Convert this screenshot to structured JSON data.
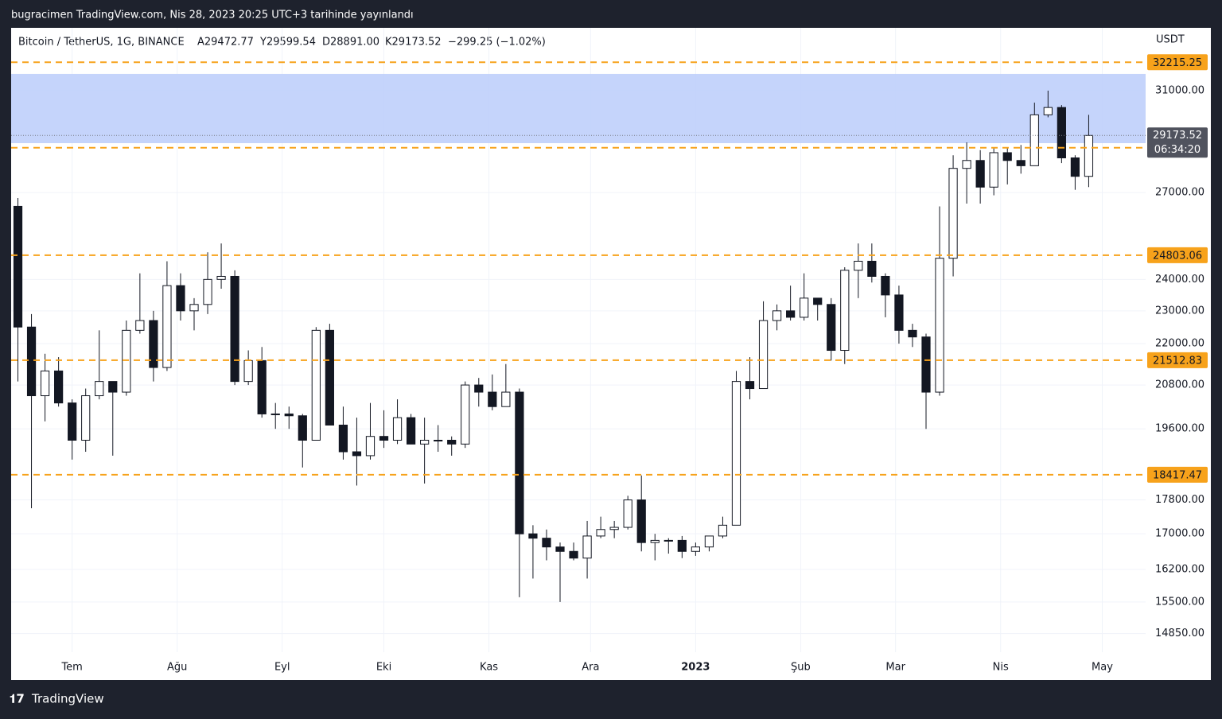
{
  "header": {
    "published": "bugracimen TradingView.com, Nis 28, 2023 20:25 UTC+3 tarihinde yayınlandı",
    "symbol": "Bitcoin / TetherUS, 1G, BINANCE",
    "open": "A29472.77",
    "high": "Y29599.54",
    "low": "D28891.00",
    "close": "K29173.52",
    "change": "−299.25 (−1.02%)",
    "brand": "TradingView"
  },
  "chart_data": {
    "type": "candlestick",
    "log_scale": true,
    "y_axis_label": "USDT",
    "ylim": [
      14480,
      33755
    ],
    "xlim": [
      0,
      83.7
    ],
    "yticks": [
      {
        "value": 31000,
        "label": "31000.00"
      },
      {
        "value": 27000,
        "label": "27000.00"
      },
      {
        "value": 24000,
        "label": "24000.00"
      },
      {
        "value": 23000,
        "label": "23000.00"
      },
      {
        "value": 22000,
        "label": "22000.00"
      },
      {
        "value": 20800,
        "label": "20800.00"
      },
      {
        "value": 19600,
        "label": "19600.00"
      },
      {
        "value": 17800,
        "label": "17800.00"
      },
      {
        "value": 17000,
        "label": "17000.00"
      },
      {
        "value": 16200,
        "label": "16200.00"
      },
      {
        "value": 15500,
        "label": "15500.00"
      },
      {
        "value": 14850,
        "label": "14850.00"
      }
    ],
    "xticks": [
      {
        "value": 4.5,
        "label": "Tem"
      },
      {
        "value": 12.25,
        "label": "Ağu"
      },
      {
        "value": 20,
        "label": "Eyl"
      },
      {
        "value": 27.5,
        "label": "Eki"
      },
      {
        "value": 35.25,
        "label": "Kas"
      },
      {
        "value": 42.75,
        "label": "Ara"
      },
      {
        "value": 50.5,
        "label": "2023"
      },
      {
        "value": 58.25,
        "label": "Şub"
      },
      {
        "value": 65.25,
        "label": "Mar"
      },
      {
        "value": 73,
        "label": "Nis"
      },
      {
        "value": 80.5,
        "label": "May"
      }
    ],
    "up_color": "#ffffff",
    "down_color": "#131722",
    "level_color": "#f7a21b",
    "zone_color": "#bfcffb",
    "zone": [
      28870,
      31710
    ],
    "levels": [
      32215.25,
      28691.12,
      24803.06,
      21512.83,
      18417.47
    ],
    "last_price": 29173.52,
    "countdown": "06:34:20",
    "ohlc": [
      [
        26500,
        26800,
        20900,
        22500
      ],
      [
        22500,
        22900,
        17600,
        20500
      ],
      [
        20500,
        21700,
        19800,
        21200
      ],
      [
        21200,
        21600,
        20200,
        20300
      ],
      [
        20300,
        20400,
        18800,
        19300
      ],
      [
        19300,
        20700,
        19000,
        20500
      ],
      [
        20500,
        22400,
        20400,
        20900
      ],
      [
        20900,
        20900,
        18900,
        20600
      ],
      [
        20600,
        22700,
        20500,
        22400
      ],
      [
        22400,
        24200,
        22300,
        22700
      ],
      [
        22700,
        23000,
        20900,
        21300
      ],
      [
        21300,
        24600,
        21200,
        23800
      ],
      [
        23800,
        24200,
        22700,
        23000
      ],
      [
        23000,
        23400,
        22400,
        23200
      ],
      [
        23200,
        24900,
        22900,
        24000
      ],
      [
        24000,
        25200,
        23700,
        24100
      ],
      [
        24100,
        24300,
        20800,
        20900
      ],
      [
        20900,
        21800,
        20800,
        21500
      ],
      [
        21500,
        21900,
        19900,
        20000
      ],
      [
        20000,
        20300,
        19600,
        20000
      ],
      [
        20000,
        20200,
        19600,
        19950
      ],
      [
        19950,
        20000,
        18600,
        19300
      ],
      [
        19300,
        22500,
        19300,
        22400
      ],
      [
        22400,
        22600,
        19700,
        19700
      ],
      [
        19700,
        20200,
        18800,
        19000
      ],
      [
        19000,
        19900,
        18150,
        18900
      ],
      [
        18900,
        20300,
        18800,
        19400
      ],
      [
        19400,
        20100,
        19100,
        19300
      ],
      [
        19300,
        20400,
        19200,
        19900
      ],
      [
        19900,
        20000,
        19200,
        19200
      ],
      [
        19200,
        19900,
        18200,
        19300
      ],
      [
        19300,
        19700,
        19000,
        19300
      ],
      [
        19300,
        19400,
        18900,
        19200
      ],
      [
        19200,
        20900,
        19100,
        20800
      ],
      [
        20800,
        21000,
        20200,
        20600
      ],
      [
        20600,
        21100,
        20100,
        20200
      ],
      [
        20200,
        21400,
        20200,
        20600
      ],
      [
        20600,
        20700,
        15600,
        17000
      ],
      [
        17000,
        17200,
        16000,
        16900
      ],
      [
        16900,
        17100,
        16400,
        16700
      ],
      [
        16700,
        16800,
        15500,
        16600
      ],
      [
        16600,
        16800,
        16400,
        16450
      ],
      [
        16450,
        17300,
        16000,
        16950
      ],
      [
        16950,
        17400,
        16900,
        17100
      ],
      [
        17100,
        17300,
        16900,
        17150
      ],
      [
        17150,
        17900,
        17100,
        17800
      ],
      [
        17800,
        18400,
        16600,
        16800
      ],
      [
        16800,
        17000,
        16400,
        16850
      ],
      [
        16850,
        16900,
        16550,
        16850
      ],
      [
        16850,
        16950,
        16450,
        16600
      ],
      [
        16600,
        16800,
        16500,
        16700
      ],
      [
        16700,
        16900,
        16600,
        16950
      ],
      [
        16950,
        17400,
        16900,
        17200
      ],
      [
        17200,
        21200,
        17200,
        20900
      ],
      [
        20900,
        21600,
        20400,
        20700
      ],
      [
        20700,
        23300,
        20700,
        22700
      ],
      [
        22700,
        23200,
        22400,
        23000
      ],
      [
        23000,
        23800,
        22700,
        22800
      ],
      [
        22800,
        24200,
        22700,
        23400
      ],
      [
        23400,
        23400,
        22700,
        23200
      ],
      [
        23200,
        23400,
        21500,
        21800
      ],
      [
        21800,
        24400,
        21400,
        24300
      ],
      [
        24300,
        25200,
        23400,
        24600
      ],
      [
        24600,
        25200,
        23900,
        24100
      ],
      [
        24100,
        24200,
        22800,
        23500
      ],
      [
        23500,
        23800,
        22000,
        22400
      ],
      [
        22400,
        22600,
        21900,
        22200
      ],
      [
        22200,
        22300,
        19600,
        20600
      ],
      [
        20600,
        26500,
        20500,
        24700
      ],
      [
        24700,
        28400,
        24100,
        27900
      ],
      [
        27900,
        28900,
        26600,
        28200
      ],
      [
        28200,
        28600,
        26600,
        27200
      ],
      [
        27200,
        28700,
        26900,
        28500
      ],
      [
        28500,
        28700,
        27300,
        28200
      ],
      [
        28200,
        28800,
        27700,
        28000
      ],
      [
        28000,
        30500,
        28000,
        30000
      ],
      [
        30000,
        31000,
        29900,
        30300
      ],
      [
        30300,
        30400,
        28100,
        28300
      ],
      [
        28300,
        28400,
        27100,
        27600
      ],
      [
        27600,
        30000,
        27200,
        29173.52
      ]
    ]
  }
}
